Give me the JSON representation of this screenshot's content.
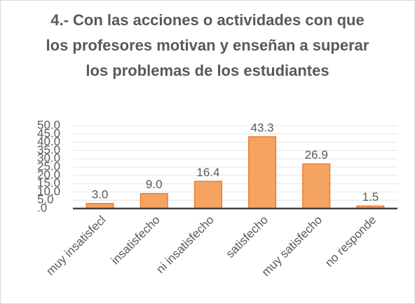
{
  "chart_data": {
    "type": "bar",
    "title": "4.- Con las acciones o actividades con que los profesores motivan y enseñan a superar los problemas de los estudiantes",
    "categories": [
      "muy insatisfecl",
      "insatisfecho",
      "ni insatisfecho",
      "satisfecho",
      "muy satisfecho",
      "no responde"
    ],
    "values": [
      3,
      9,
      16.4,
      43.3,
      26.9,
      1.5
    ],
    "value_labels": [
      "3.0",
      "9.0",
      "16.4",
      "43.3",
      "26.9",
      "1.5"
    ],
    "color": "#f4a460",
    "ylim": [
      0,
      50
    ],
    "yticks": [
      {
        "value": 0,
        "label": ".0"
      },
      {
        "value": 5,
        "label": "5.0"
      },
      {
        "value": 10,
        "label": "10.0"
      },
      {
        "value": 15,
        "label": "15.0"
      },
      {
        "value": 20,
        "label": "20.0"
      },
      {
        "value": 25,
        "label": "25.0"
      },
      {
        "value": 30,
        "label": "30.0"
      },
      {
        "value": 35,
        "label": "35.0"
      },
      {
        "value": 40,
        "label": "40.0"
      },
      {
        "value": 45,
        "label": "45.0"
      },
      {
        "value": 50,
        "label": "50.0"
      }
    ],
    "grid": true
  }
}
